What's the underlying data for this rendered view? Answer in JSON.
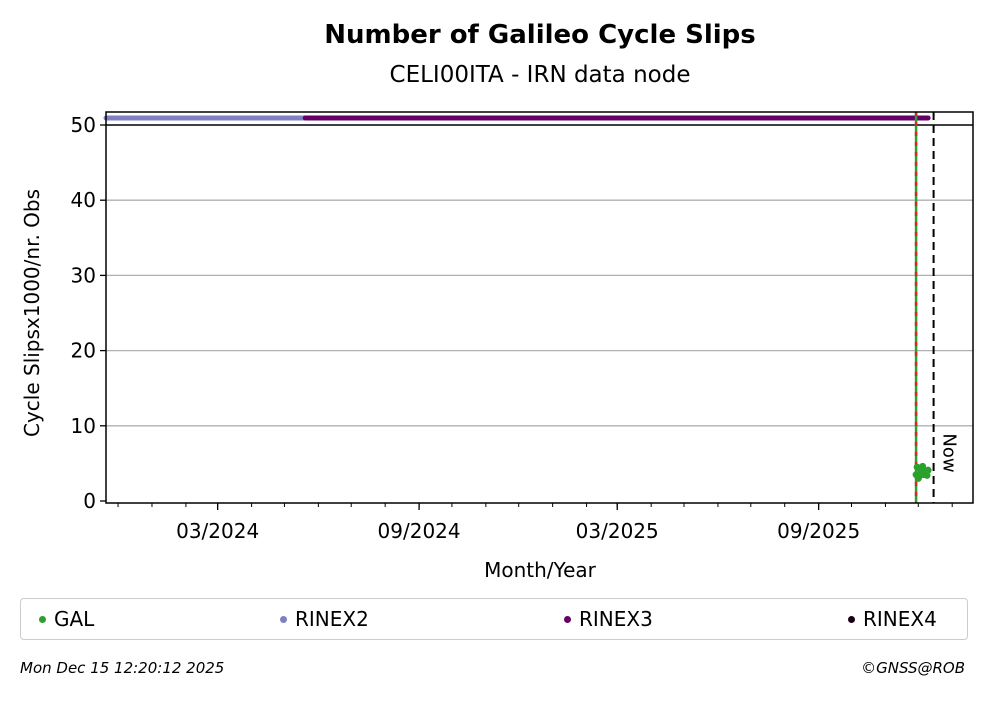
{
  "chart_data": {
    "type": "scatter",
    "title": "Number of Galileo Cycle Slips",
    "subtitle": "CELI00ITA - IRN data node",
    "xlabel": "Month/Year",
    "ylabel": "Cycle Slipsx1000/nr. Obs",
    "xlim": [
      "2023-11-20",
      "2026-01-20"
    ],
    "ylim": [
      0,
      50
    ],
    "yticks": [
      0,
      10,
      20,
      30,
      40,
      50
    ],
    "xticks": [
      {
        "date": "2024-03-01",
        "label": "03/2024"
      },
      {
        "date": "2024-09-01",
        "label": "09/2024"
      },
      {
        "date": "2025-03-01",
        "label": "03/2025"
      },
      {
        "date": "2025-09-01",
        "label": "09/2025"
      }
    ],
    "grid": "horizontal",
    "series": [
      {
        "name": "GAL",
        "color": "#2ca02c",
        "x": [
          "2025-11-29",
          "2025-11-30",
          "2025-12-01",
          "2025-12-02",
          "2025-12-03",
          "2025-12-04",
          "2025-12-05",
          "2025-12-06",
          "2025-12-07",
          "2025-12-08",
          "2025-12-09",
          "2025-12-10"
        ],
        "y": [
          3.5,
          4.5,
          3.0,
          3.3,
          4.2,
          3.8,
          4.6,
          3.5,
          3.6,
          4.0,
          3.4,
          4.1
        ]
      },
      {
        "name": "RINEX2",
        "color": "#8080c0",
        "range": [
          "2023-11-20",
          "2024-05-20"
        ]
      },
      {
        "name": "RINEX3",
        "color": "#660066",
        "range": [
          "2024-05-20",
          "2025-12-10"
        ]
      },
      {
        "name": "RINEX4",
        "color": "#1a0015",
        "range": []
      }
    ],
    "markers": [
      {
        "date": "2025-11-29",
        "style": "red/green dashed"
      },
      {
        "date": "2025-12-15",
        "label": "Now",
        "style": "black dashed"
      }
    ],
    "legend": "bottom"
  },
  "footer": {
    "timestamp": "Mon Dec 15 12:20:12 2025",
    "copyright": "©GNSS@ROB"
  }
}
